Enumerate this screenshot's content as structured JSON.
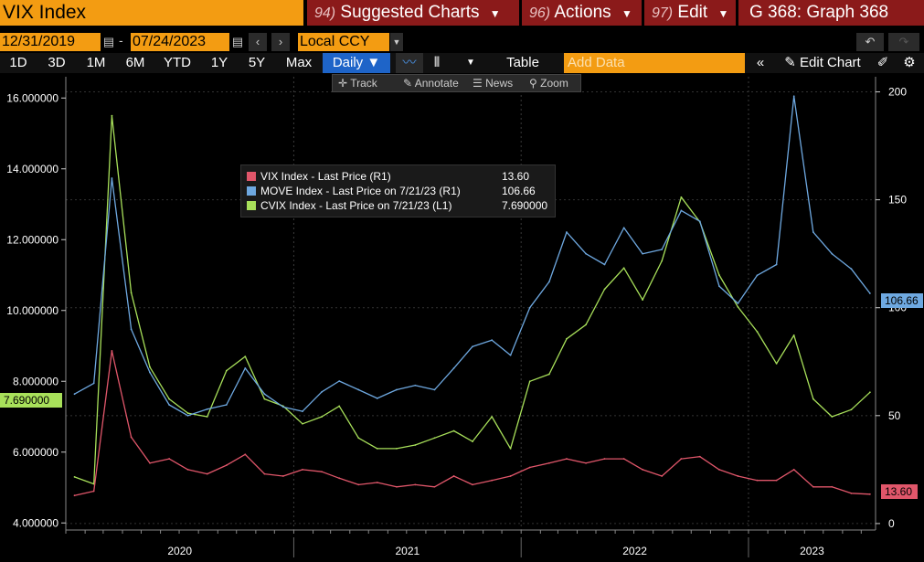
{
  "header": {
    "ticker": "VIX Index",
    "menus": [
      {
        "num": "94)",
        "label": "Suggested Charts"
      },
      {
        "num": "96)",
        "label": "Actions"
      },
      {
        "num": "97)",
        "label": "Edit"
      }
    ],
    "graph_title": "G 368: Graph 368"
  },
  "toolbar": {
    "start_date": "12/31/2019",
    "date_sep": "-",
    "end_date": "07/24/2023",
    "currency": "Local CCY",
    "periods": [
      "1D",
      "3D",
      "1M",
      "6M",
      "YTD",
      "1Y",
      "5Y",
      "Max"
    ],
    "frequency": "Daily",
    "table_label": "Table",
    "add_data_placeholder": "Add Data",
    "edit_chart_label": "Edit Chart"
  },
  "tools": {
    "track": "Track",
    "annotate": "Annotate",
    "news": "News",
    "zoom": "Zoom"
  },
  "legend": [
    {
      "label": "VIX Index - Last Price (R1)",
      "value": "13.60",
      "color": "#e0566a"
    },
    {
      "label": "MOVE Index - Last Price on 7/21/23 (R1)",
      "value": "106.66",
      "color": "#6ea8e0"
    },
    {
      "label": "CVIX Index - Last Price on 7/21/23 (L1)",
      "value": "7.690000",
      "color": "#a8e05a"
    }
  ],
  "last_value_tags": {
    "left": "7.690000",
    "move": "106.66",
    "vix": "13.60"
  },
  "chart_data": {
    "type": "line",
    "x_labels": [
      "2020",
      "2021",
      "2022",
      "2023"
    ],
    "left_axis": {
      "ticks": [
        "4.000000",
        "6.000000",
        "8.000000",
        "10.000000",
        "12.000000",
        "14.000000",
        "16.000000"
      ],
      "range": [
        3.8,
        16.6
      ]
    },
    "right_axis": {
      "ticks": [
        "0",
        "50",
        "100",
        "150",
        "200"
      ],
      "range": [
        -3,
        207
      ]
    },
    "series": [
      {
        "name": "CVIX Index - Last Price on 7/21/23 (L1)",
        "axis": "left",
        "color": "#a8e05a",
        "x": [
          "2020-01",
          "2020-02",
          "2020-03",
          "2020-04",
          "2020-05",
          "2020-06",
          "2020-07",
          "2020-08",
          "2020-09",
          "2020-10",
          "2020-11",
          "2020-12",
          "2021-01",
          "2021-02",
          "2021-03",
          "2021-04",
          "2021-05",
          "2021-06",
          "2021-07",
          "2021-08",
          "2021-09",
          "2021-10",
          "2021-11",
          "2021-12",
          "2022-01",
          "2022-02",
          "2022-03",
          "2022-04",
          "2022-05",
          "2022-06",
          "2022-07",
          "2022-08",
          "2022-09",
          "2022-10",
          "2022-11",
          "2022-12",
          "2023-01",
          "2023-02",
          "2023-03",
          "2023-04",
          "2023-05",
          "2023-06",
          "2023-07"
        ],
        "values": [
          5.3,
          5.1,
          15.5,
          10.5,
          8.4,
          7.5,
          7.1,
          7.0,
          8.3,
          8.7,
          7.5,
          7.3,
          6.8,
          7.0,
          7.3,
          6.4,
          6.1,
          6.1,
          6.2,
          6.4,
          6.6,
          6.3,
          7.0,
          6.1,
          8.0,
          8.2,
          9.2,
          9.6,
          10.6,
          11.2,
          10.3,
          11.4,
          13.2,
          12.5,
          11.0,
          10.1,
          9.4,
          8.5,
          9.3,
          7.5,
          7.0,
          7.2,
          7.69
        ]
      },
      {
        "name": "MOVE Index - Last Price on 7/21/23 (R1)",
        "axis": "right",
        "color": "#6ea8e0",
        "x": [
          "2020-01",
          "2020-02",
          "2020-03",
          "2020-04",
          "2020-05",
          "2020-06",
          "2020-07",
          "2020-08",
          "2020-09",
          "2020-10",
          "2020-11",
          "2020-12",
          "2021-01",
          "2021-02",
          "2021-03",
          "2021-04",
          "2021-05",
          "2021-06",
          "2021-07",
          "2021-08",
          "2021-09",
          "2021-10",
          "2021-11",
          "2021-12",
          "2022-01",
          "2022-02",
          "2022-03",
          "2022-04",
          "2022-05",
          "2022-06",
          "2022-07",
          "2022-08",
          "2022-09",
          "2022-10",
          "2022-11",
          "2022-12",
          "2023-01",
          "2023-02",
          "2023-03",
          "2023-04",
          "2023-05",
          "2023-06",
          "2023-07"
        ],
        "values": [
          60,
          65,
          160,
          90,
          70,
          55,
          50,
          53,
          55,
          72,
          60,
          54,
          52,
          61,
          66,
          62,
          58,
          62,
          64,
          62,
          72,
          82,
          85,
          78,
          100,
          112,
          135,
          125,
          120,
          137,
          125,
          127,
          145,
          140,
          110,
          102,
          115,
          120,
          198,
          135,
          125,
          118,
          106.66
        ]
      },
      {
        "name": "VIX Index - Last Price (R1)",
        "axis": "right",
        "color": "#e0566a",
        "x": [
          "2020-01",
          "2020-02",
          "2020-03",
          "2020-04",
          "2020-05",
          "2020-06",
          "2020-07",
          "2020-08",
          "2020-09",
          "2020-10",
          "2020-11",
          "2020-12",
          "2021-01",
          "2021-02",
          "2021-03",
          "2021-04",
          "2021-05",
          "2021-06",
          "2021-07",
          "2021-08",
          "2021-09",
          "2021-10",
          "2021-11",
          "2021-12",
          "2022-01",
          "2022-02",
          "2022-03",
          "2022-04",
          "2022-05",
          "2022-06",
          "2022-07",
          "2022-08",
          "2022-09",
          "2022-10",
          "2022-11",
          "2022-12",
          "2023-01",
          "2023-02",
          "2023-03",
          "2023-04",
          "2023-05",
          "2023-06",
          "2023-07"
        ],
        "values": [
          13,
          15,
          80,
          40,
          28,
          30,
          25,
          23,
          27,
          32,
          23,
          22,
          25,
          24,
          21,
          18,
          19,
          17,
          18,
          17,
          22,
          18,
          20,
          22,
          26,
          28,
          30,
          28,
          30,
          30,
          25,
          22,
          30,
          31,
          25,
          22,
          20,
          20,
          25,
          17,
          17,
          14,
          13.6
        ]
      }
    ]
  }
}
